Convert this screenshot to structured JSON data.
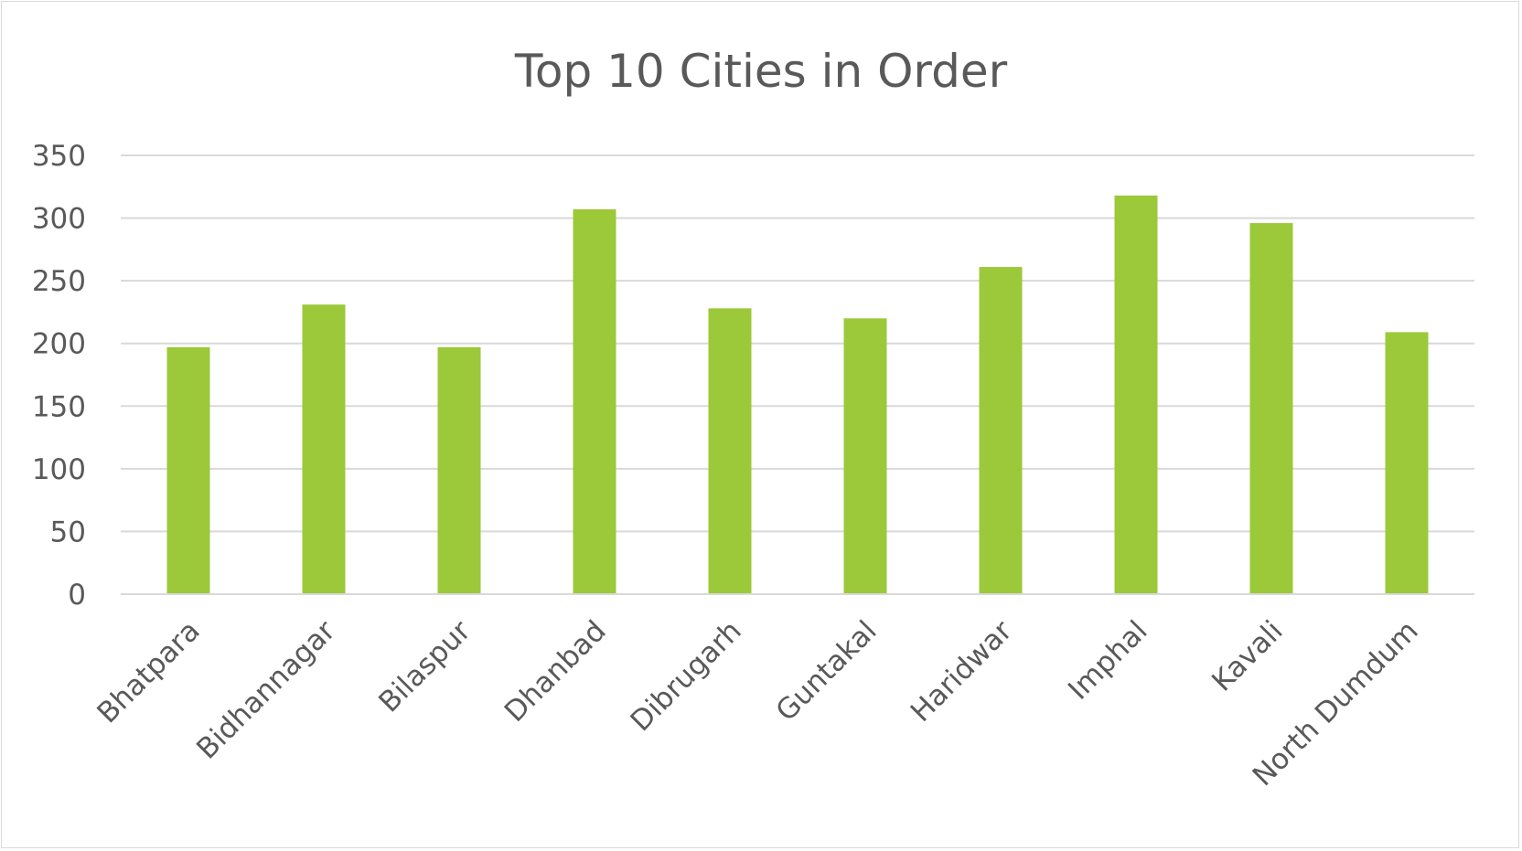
{
  "chart_data": {
    "type": "bar",
    "title": "Top 10 Cities in Order",
    "xlabel": "",
    "ylabel": "",
    "categories": [
      "Bhatpara",
      "Bidhannagar",
      "Bilaspur",
      "Dhanbad",
      "Dibrugarh",
      "Guntakal",
      "Haridwar",
      "Imphal",
      "Kavali",
      "North Dumdum"
    ],
    "values": [
      197,
      231,
      197,
      307,
      228,
      220,
      261,
      318,
      296,
      209
    ],
    "ylim": [
      0,
      350
    ],
    "yticks": [
      0,
      50,
      100,
      150,
      200,
      250,
      300,
      350
    ],
    "grid": true,
    "legend": "none",
    "bar_color": "#9bc93a"
  }
}
